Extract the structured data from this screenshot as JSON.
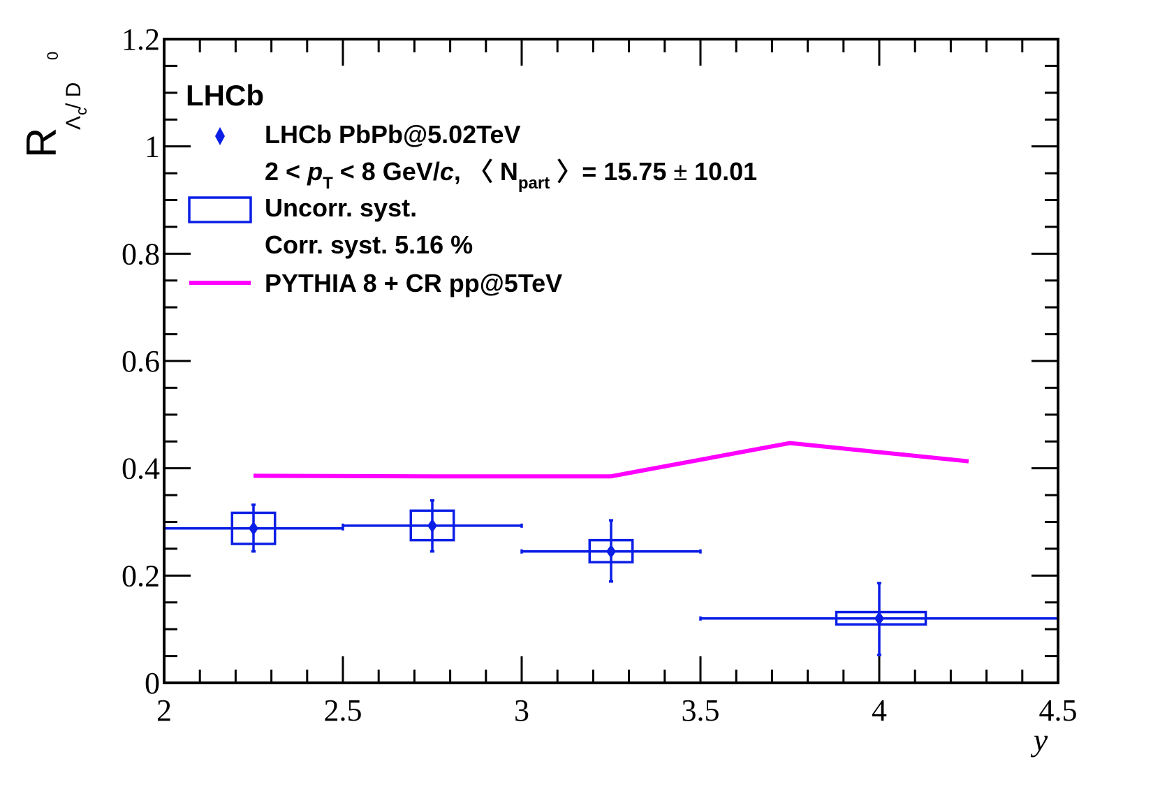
{
  "chart_data": {
    "type": "scatter",
    "experiment_label": "LHCb",
    "xlabel": "y",
    "ylabel": {
      "main": "R",
      "sub_lambda": "Λ",
      "sub_c": "c",
      "sub_rest": " / D",
      "sup": "0"
    },
    "xlim": [
      2,
      4.5
    ],
    "ylim": [
      0,
      1.2
    ],
    "x_ticks": [
      {
        "value": 2,
        "label": "2"
      },
      {
        "value": 2.5,
        "label": "2.5"
      },
      {
        "value": 3,
        "label": "3"
      },
      {
        "value": 3.5,
        "label": "3.5"
      },
      {
        "value": 4,
        "label": "4"
      },
      {
        "value": 4.5,
        "label": "4.5"
      }
    ],
    "y_ticks": [
      {
        "value": 0,
        "label": "0"
      },
      {
        "value": 0.2,
        "label": "0.2"
      },
      {
        "value": 0.4,
        "label": "0.4"
      },
      {
        "value": 0.6,
        "label": "0.6"
      },
      {
        "value": 0.8,
        "label": "0.8"
      },
      {
        "value": 1.0,
        "label": "1"
      },
      {
        "value": 1.2,
        "label": "1.2"
      }
    ],
    "x_minor_step": 0.1,
    "y_minor_step": 0.05,
    "grid": false,
    "legend_position": "top-left",
    "series": [
      {
        "name": "LHCb PbPb@5.02TeV",
        "kind": "points",
        "color": "#0a1ee6",
        "points": [
          {
            "x": 2.25,
            "x_low": 2.0,
            "x_high": 2.5,
            "y": 0.288,
            "stat_low": 0.245,
            "stat_high": 0.332,
            "syst_low": 0.259,
            "syst_high": 0.317,
            "syst_x_low": 2.19,
            "syst_x_high": 2.31
          },
          {
            "x": 2.75,
            "x_low": 2.5,
            "x_high": 3.0,
            "y": 0.293,
            "stat_low": 0.245,
            "stat_high": 0.34,
            "syst_low": 0.266,
            "syst_high": 0.321,
            "syst_x_low": 2.69,
            "syst_x_high": 2.81
          },
          {
            "x": 3.25,
            "x_low": 3.0,
            "x_high": 3.5,
            "y": 0.245,
            "stat_low": 0.189,
            "stat_high": 0.303,
            "syst_low": 0.225,
            "syst_high": 0.266,
            "syst_x_low": 3.19,
            "syst_x_high": 3.31
          },
          {
            "x": 4.0,
            "x_low": 3.5,
            "x_high": 4.5,
            "y": 0.12,
            "stat_low": 0.052,
            "stat_high": 0.186,
            "syst_low": 0.109,
            "syst_high": 0.132,
            "syst_x_low": 3.88,
            "syst_x_high": 4.13
          }
        ]
      },
      {
        "name": "PYTHIA 8 + CR pp@5TeV",
        "kind": "line",
        "color": "#ff00ff",
        "x": [
          2.25,
          2.75,
          3.25,
          3.75,
          4.25
        ],
        "y": [
          0.386,
          0.385,
          0.385,
          0.447,
          0.413
        ]
      }
    ],
    "legend": [
      {
        "kind": "marker",
        "text": "LHCb PbPb@5.02TeV"
      },
      {
        "kind": "kinematics",
        "parts": [
          "2 < ",
          "p",
          "T",
          " < 8 GeV/",
          "c",
          ", 〈 N",
          "part",
          " 〉= 15.75 ",
          "±",
          " 10.01"
        ]
      },
      {
        "kind": "box",
        "text": "Uncorr. syst."
      },
      {
        "kind": "none",
        "text": "Corr. syst. 5.16 %"
      },
      {
        "kind": "line",
        "text": "PYTHIA 8 + CR pp@5TeV"
      }
    ]
  }
}
